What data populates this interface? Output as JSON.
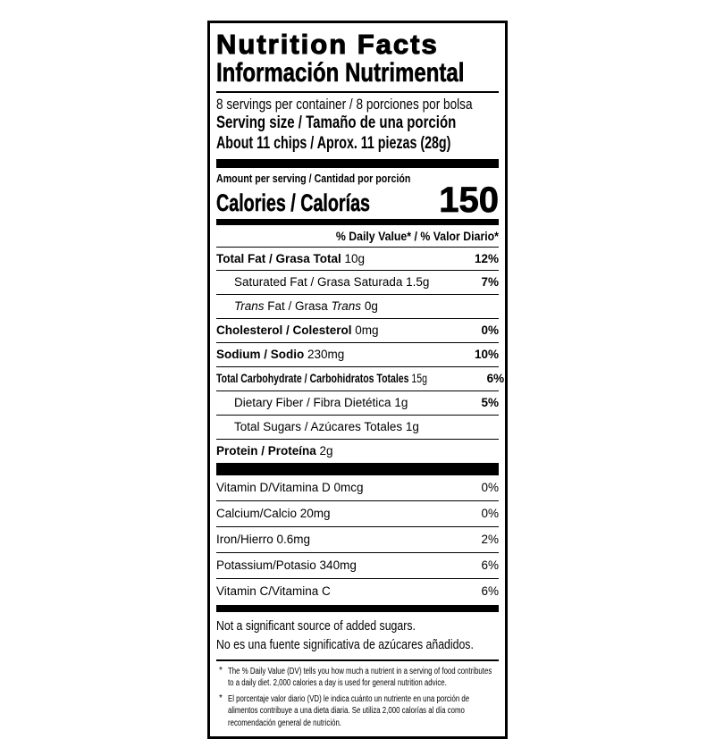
{
  "header": {
    "title_en": "Nutrition Facts",
    "title_es": "Información Nutrimental",
    "servings_per_container": "8 servings per container / 8 porciones por bolsa",
    "serving_size_label": "Serving size / Tamaño de una porción",
    "serving_size_value": "About 11 chips / Aprox. 11 piezas (28g)"
  },
  "calories": {
    "amount_per_serving_label": "Amount per serving / Cantidad por porción",
    "label": "Calories / Calorías",
    "value": "150"
  },
  "daily_value_header": "% Daily Value* / % Valor Diario*",
  "nutrients": [
    {
      "parts": [
        {
          "text": "Total Fat / Grasa Total",
          "bold": true
        }
      ],
      "amount": "10g",
      "dv": "12%",
      "indent": false
    },
    {
      "parts": [
        {
          "text": "Saturated Fat / Grasa Saturada"
        }
      ],
      "amount": "1.5g",
      "dv": "7%",
      "indent": true
    },
    {
      "parts": [
        {
          "text": "Trans",
          "italic": true
        },
        {
          "text": " Fat / Grasa "
        },
        {
          "text": "Trans",
          "italic": true
        }
      ],
      "amount": "0g",
      "dv": "",
      "indent": true
    },
    {
      "parts": [
        {
          "text": "Cholesterol / Colesterol",
          "bold": true
        }
      ],
      "amount": "0mg",
      "dv": "0%",
      "indent": false
    },
    {
      "parts": [
        {
          "text": "Sodium / Sodio",
          "bold": true
        }
      ],
      "amount": "230mg",
      "dv": "10%",
      "indent": false
    },
    {
      "parts": [
        {
          "text": "Total Carbohydrate / Carbohidratos Totales",
          "bold": true
        }
      ],
      "amount": "15g",
      "dv": "6%",
      "indent": false,
      "squeeze": true
    },
    {
      "parts": [
        {
          "text": "Dietary Fiber / Fibra Dietética"
        }
      ],
      "amount": "1g",
      "dv": "5%",
      "indent": true
    },
    {
      "parts": [
        {
          "text": "Total Sugars / Azúcares Totales"
        }
      ],
      "amount": "1g",
      "dv": "",
      "indent": true
    },
    {
      "parts": [
        {
          "text": "Protein / Proteína",
          "bold": true
        }
      ],
      "amount": "2g",
      "dv": "",
      "indent": false
    }
  ],
  "micronutrients": [
    {
      "label": "Vitamin D/Vitamina D",
      "amount": "0mcg",
      "dv": "0%"
    },
    {
      "label": "Calcium/Calcio",
      "amount": "20mg",
      "dv": "0%"
    },
    {
      "label": "Iron/Hierro",
      "amount": "0.6mg",
      "dv": "2%"
    },
    {
      "label": "Potassium/Potasio",
      "amount": "340mg",
      "dv": "6%"
    },
    {
      "label": "Vitamin C/Vitamina C",
      "amount": "",
      "dv": "6%"
    }
  ],
  "notes": [
    "Not a significant source of added sugars.",
    "No es una fuente significativa de azúcares añadidos."
  ],
  "footnotes": [
    {
      "marker": "*",
      "text": "The % Daily Value (DV) tells you how much a nutrient in a serving of food contributes to a daily diet. 2,000 calories a day is used for general nutrition advice."
    },
    {
      "marker": "*",
      "text": "El porcentaje valor diario (VD) le indica cuánto un nutriente en una porción de alimentos contribuye a una dieta diaria. Se utiliza 2,000 calorías al día como recomendación general de nutrición."
    }
  ],
  "colors": {
    "ink": "#000000",
    "background": "#ffffff"
  }
}
